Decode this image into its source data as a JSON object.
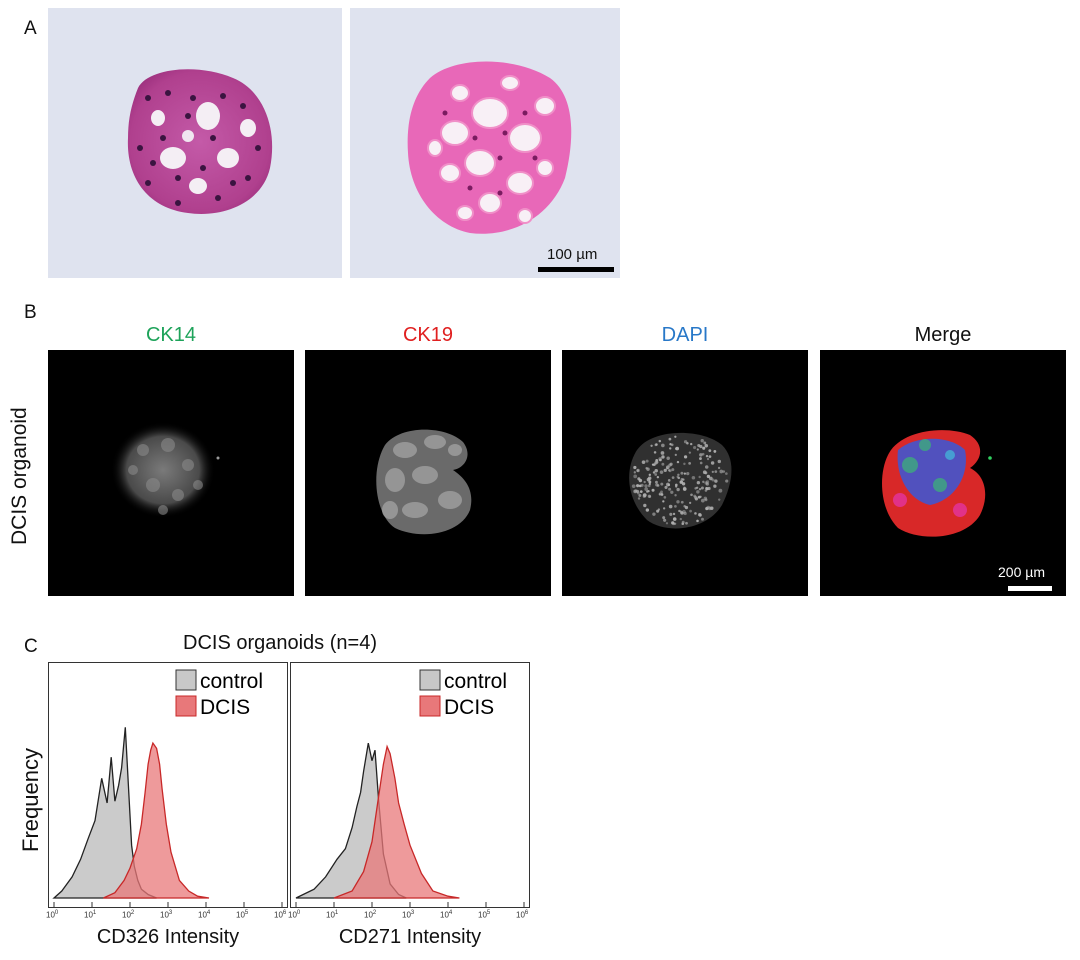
{
  "panels": {
    "a": {
      "letter": "A",
      "scale_label": "100 µm"
    },
    "b": {
      "letter": "B",
      "row_label": "DCIS organoid",
      "channels": [
        {
          "label": "CK14",
          "color": "#1ea35a"
        },
        {
          "label": "CK19",
          "color": "#e02020"
        },
        {
          "label": "DAPI",
          "color": "#2878c8"
        },
        {
          "label": "Merge",
          "color": "#111111"
        }
      ],
      "scale_label": "200 µm"
    },
    "c": {
      "letter": "C",
      "title": "DCIS organoids (n=4)",
      "ylabel": "Frequency",
      "legend": [
        {
          "label": "control",
          "color": "#c8c8c8"
        },
        {
          "label": "DCIS",
          "color": "#e8787a"
        }
      ]
    }
  },
  "chart_data": [
    {
      "type": "area",
      "xlabel": "CD326 Intensity",
      "ylabel": "Frequency",
      "x_scale": "log",
      "xlim": [
        1,
        1000000
      ],
      "x_ticks": [
        "10^0",
        "10^1",
        "10^2",
        "10^3",
        "10^4",
        "10^5",
        "10^6"
      ],
      "legend_position": "top-right",
      "series": [
        {
          "name": "control",
          "color": "#c8c8c8",
          "x": [
            1,
            1.6,
            3,
            5,
            8,
            12,
            18,
            25,
            32,
            40,
            50,
            60,
            75,
            90,
            110,
            130,
            160,
            200,
            300,
            500
          ],
          "y": [
            0,
            0.04,
            0.12,
            0.22,
            0.34,
            0.44,
            0.68,
            0.54,
            0.8,
            0.55,
            0.64,
            0.74,
            0.97,
            0.65,
            0.3,
            0.18,
            0.1,
            0.05,
            0.02,
            0
          ]
        },
        {
          "name": "DCIS",
          "color": "#e8787a",
          "x": [
            20,
            40,
            70,
            100,
            150,
            200,
            250,
            300,
            350,
            400,
            500,
            600,
            700,
            900,
            1200,
            2000,
            3500,
            6000,
            12000
          ],
          "y": [
            0,
            0.03,
            0.1,
            0.17,
            0.28,
            0.42,
            0.6,
            0.76,
            0.84,
            0.88,
            0.85,
            0.76,
            0.62,
            0.42,
            0.26,
            0.1,
            0.04,
            0.01,
            0
          ]
        }
      ]
    },
    {
      "type": "area",
      "xlabel": "CD271 Intensity",
      "ylabel": "Frequency",
      "x_scale": "log",
      "xlim": [
        1,
        1000000
      ],
      "x_ticks": [
        "10^0",
        "10^1",
        "10^2",
        "10^3",
        "10^4",
        "10^5",
        "10^6"
      ],
      "legend_position": "top-right",
      "series": [
        {
          "name": "control",
          "color": "#c8c8c8",
          "x": [
            1,
            3,
            6,
            12,
            20,
            30,
            40,
            50,
            60,
            80,
            100,
            120,
            150,
            200,
            300,
            500,
            800
          ],
          "y": [
            0,
            0.05,
            0.12,
            0.22,
            0.28,
            0.4,
            0.52,
            0.6,
            0.72,
            0.88,
            0.78,
            0.84,
            0.55,
            0.25,
            0.08,
            0.02,
            0
          ]
        },
        {
          "name": "DCIS",
          "color": "#e8787a",
          "x": [
            10,
            30,
            60,
            100,
            150,
            200,
            250,
            300,
            400,
            500,
            700,
            1000,
            2000,
            4000,
            10000,
            20000
          ],
          "y": [
            0,
            0.04,
            0.15,
            0.32,
            0.58,
            0.76,
            0.86,
            0.82,
            0.68,
            0.54,
            0.42,
            0.3,
            0.14,
            0.04,
            0.01,
            0
          ]
        }
      ]
    }
  ]
}
